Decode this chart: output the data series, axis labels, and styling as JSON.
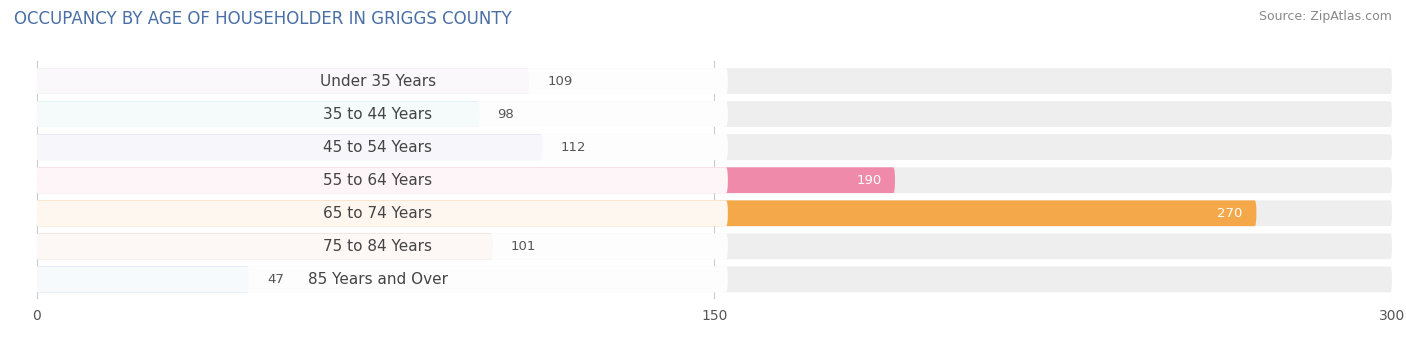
{
  "title": "OCCUPANCY BY AGE OF HOUSEHOLDER IN GRIGGS COUNTY",
  "source": "Source: ZipAtlas.com",
  "categories": [
    "Under 35 Years",
    "35 to 44 Years",
    "45 to 54 Years",
    "55 to 64 Years",
    "65 to 74 Years",
    "75 to 84 Years",
    "85 Years and Over"
  ],
  "values": [
    109,
    98,
    112,
    190,
    270,
    101,
    47
  ],
  "bar_colors": [
    "#c4b5d9",
    "#7ecfcb",
    "#a8a8d8",
    "#f08aaa",
    "#f5a84a",
    "#e8a898",
    "#a8c8e8"
  ],
  "xlim": [
    0,
    300
  ],
  "xticks": [
    0,
    150,
    300
  ],
  "label_colors": [
    "#555555",
    "#555555",
    "#555555",
    "#ffffff",
    "#ffffff",
    "#555555",
    "#555555"
  ],
  "background_color": "#ffffff",
  "bar_bg_color": "#eeeeee",
  "title_fontsize": 12,
  "source_fontsize": 9,
  "label_fontsize": 9.5,
  "cat_fontsize": 11,
  "tick_fontsize": 10
}
